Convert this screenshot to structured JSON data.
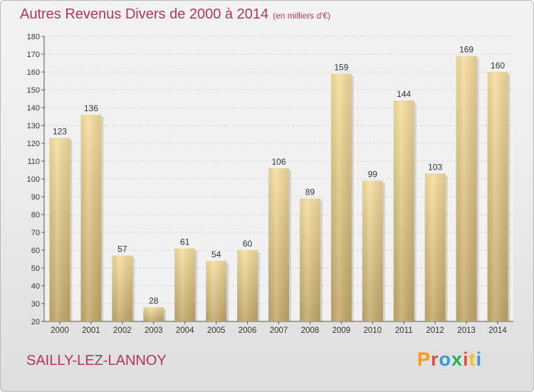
{
  "header": {
    "title": "Autres Revenus Divers de 2000 à 2014",
    "subtitle": "(en milliers d'€)"
  },
  "footer": {
    "commune": "SAILLY-LEZ-LANNOY",
    "brand": "Proxiti"
  },
  "colors": {
    "title": "#b4345e",
    "bar_light": "#f6df9e",
    "bar_dark": "#c4a86a",
    "brand_letters": [
      "#f39c12",
      "#e74c3c",
      "#3498db",
      "#27ae60",
      "#e74c3c",
      "#f1c40f",
      "#3498db"
    ]
  },
  "chart_data": {
    "type": "bar",
    "title": "Autres Revenus Divers de 2000 à 2014",
    "subtitle": "(en milliers d'€)",
    "categories": [
      "2000",
      "2001",
      "2002",
      "2003",
      "2004",
      "2005",
      "2006",
      "2007",
      "2008",
      "2009",
      "2010",
      "2011",
      "2012",
      "2013",
      "2014"
    ],
    "values": [
      123,
      136,
      57,
      28,
      61,
      54,
      60,
      106,
      89,
      159,
      99,
      144,
      103,
      169,
      160
    ],
    "ylim": [
      20,
      180
    ],
    "yticks": [
      20,
      30,
      40,
      50,
      60,
      70,
      80,
      90,
      100,
      110,
      120,
      130,
      140,
      150,
      160,
      170,
      180
    ],
    "grid": true,
    "data_labels": true,
    "legend": "none"
  }
}
